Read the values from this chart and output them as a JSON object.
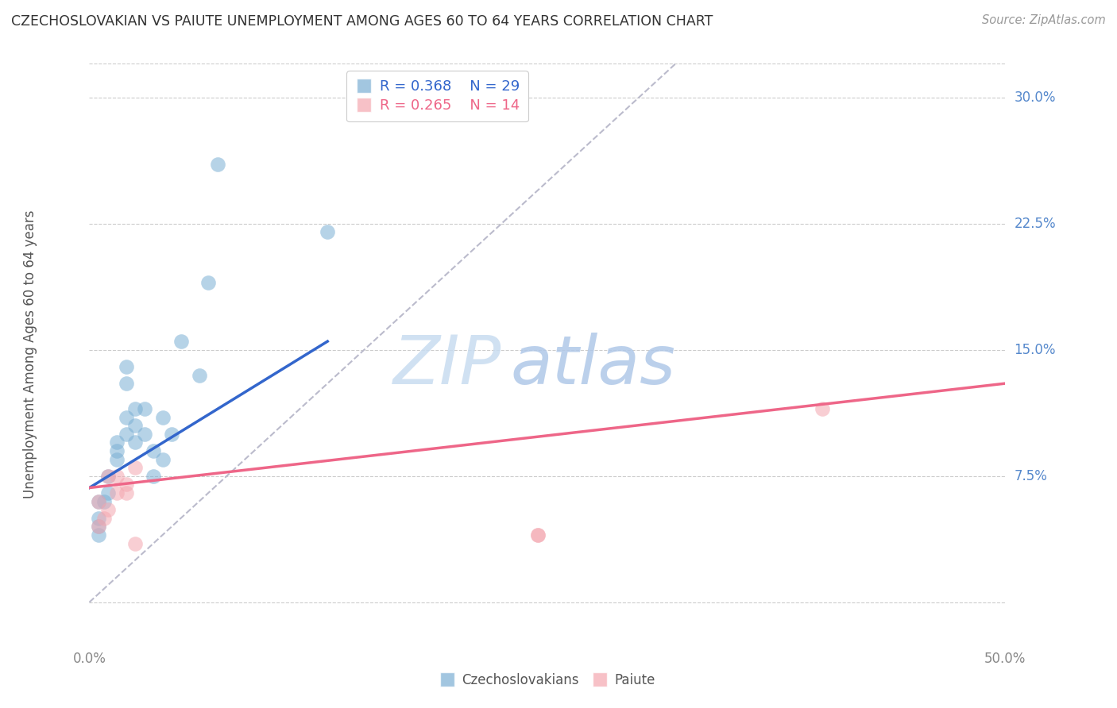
{
  "title": "CZECHOSLOVAKIAN VS PAIUTE UNEMPLOYMENT AMONG AGES 60 TO 64 YEARS CORRELATION CHART",
  "source": "Source: ZipAtlas.com",
  "ylabel": "Unemployment Among Ages 60 to 64 years",
  "xlim": [
    0.0,
    0.5
  ],
  "ylim": [
    -0.025,
    0.32
  ],
  "xticks": [
    0.0,
    0.05,
    0.1,
    0.15,
    0.2,
    0.25,
    0.3,
    0.35,
    0.4,
    0.45,
    0.5
  ],
  "xticklabels": [
    "0.0%",
    "",
    "",
    "",
    "",
    "",
    "",
    "",
    "",
    "",
    "50.0%"
  ],
  "yticks_right": [
    0.075,
    0.15,
    0.225,
    0.3
  ],
  "ytick_right_labels": [
    "7.5%",
    "15.0%",
    "22.5%",
    "30.0%"
  ],
  "blue_color": "#7BAFD4",
  "pink_color": "#F4A7B0",
  "blue_line_color": "#3366CC",
  "pink_line_color": "#EE6688",
  "diag_color": "#BBBBCC",
  "legend_blue_R": "R = 0.368",
  "legend_blue_N": "N = 29",
  "legend_pink_R": "R = 0.265",
  "legend_pink_N": "N = 14",
  "blue_scatter_x": [
    0.005,
    0.005,
    0.005,
    0.005,
    0.008,
    0.01,
    0.01,
    0.015,
    0.015,
    0.015,
    0.02,
    0.02,
    0.02,
    0.02,
    0.025,
    0.025,
    0.025,
    0.03,
    0.03,
    0.035,
    0.035,
    0.04,
    0.04,
    0.045,
    0.05,
    0.06,
    0.065,
    0.07,
    0.13
  ],
  "blue_scatter_y": [
    0.04,
    0.045,
    0.05,
    0.06,
    0.06,
    0.065,
    0.075,
    0.085,
    0.09,
    0.095,
    0.1,
    0.11,
    0.13,
    0.14,
    0.095,
    0.105,
    0.115,
    0.1,
    0.115,
    0.075,
    0.09,
    0.085,
    0.11,
    0.1,
    0.155,
    0.135,
    0.19,
    0.26,
    0.22
  ],
  "pink_scatter_x": [
    0.005,
    0.005,
    0.008,
    0.01,
    0.01,
    0.015,
    0.015,
    0.02,
    0.02,
    0.025,
    0.025,
    0.245,
    0.245,
    0.4
  ],
  "pink_scatter_y": [
    0.045,
    0.06,
    0.05,
    0.055,
    0.075,
    0.065,
    0.075,
    0.065,
    0.07,
    0.035,
    0.08,
    0.04,
    0.04,
    0.115
  ],
  "blue_line_x0": 0.0,
  "blue_line_y0": 0.068,
  "blue_line_x1": 0.13,
  "blue_line_y1": 0.155,
  "pink_line_x0": 0.0,
  "pink_line_y0": 0.068,
  "pink_line_x1": 0.5,
  "pink_line_y1": 0.13,
  "diag_line_x0": 0.0,
  "diag_line_y0": 0.0,
  "diag_line_x1": 0.32,
  "diag_line_y1": 0.32,
  "watermark_zip": "ZIP",
  "watermark_atlas": "atlas",
  "background_color": "#FFFFFF",
  "grid_color": "#CCCCCC"
}
